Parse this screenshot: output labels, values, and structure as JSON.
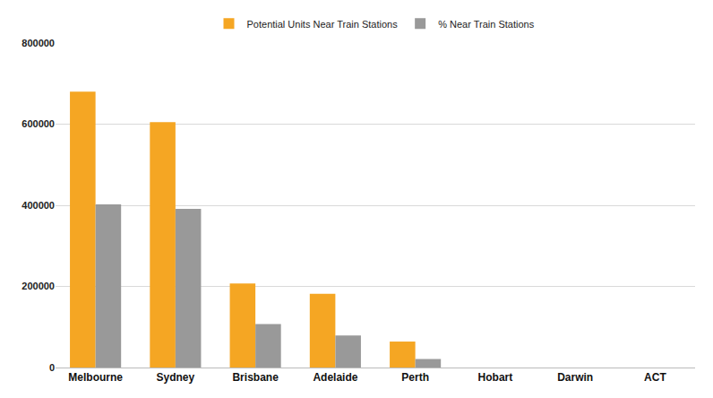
{
  "chart_data": {
    "type": "bar",
    "categories": [
      "Melbourne",
      "Sydney",
      "Brisbane",
      "Adelaide",
      "Perth",
      "Hobart",
      "Darwin",
      "ACT"
    ],
    "series": [
      {
        "name": "Potential Units Near Train Stations",
        "color": "#f5a623",
        "values": [
          680000,
          605000,
          207000,
          182000,
          64000,
          0,
          0,
          0
        ]
      },
      {
        "name": "% Near Train Stations",
        "color": "#999999",
        "values": [
          402000,
          391000,
          107000,
          79000,
          21000,
          0,
          0,
          0
        ]
      }
    ],
    "ylim": [
      0,
      800000
    ],
    "yticks": [
      0,
      200000,
      400000,
      600000,
      800000
    ],
    "grid": true,
    "legend": "top"
  }
}
